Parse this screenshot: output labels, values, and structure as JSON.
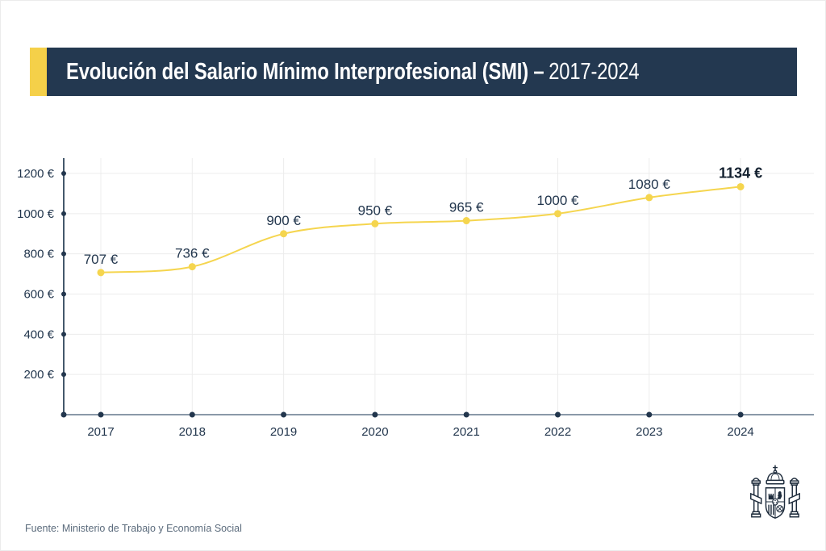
{
  "header": {
    "title_main": "Evolución del Salario Mínimo Interprofesional (SMI) –",
    "title_period": "2017-2024"
  },
  "footer": {
    "source": "Fuente: Ministerio de Trabajo y Economía Social",
    "emblem_icon": "spain-coat-of-arms"
  },
  "colors": {
    "header_navy": "#233850",
    "accent_yellow": "#F5D049",
    "series_yellow": "#F5D54E",
    "grid": "#ECECEC",
    "axis_x": "#8A99A8",
    "axis_y": "#44586C",
    "tick_dot": "#22364D",
    "label_navy": "#22364D",
    "label_bold": "#13202F",
    "source_text": "#5B6B7C"
  },
  "chart_data": {
    "type": "line",
    "title": "Evolución del Salario Mínimo Interprofesional (SMI) – 2017-2024",
    "x": [
      "2017",
      "2018",
      "2019",
      "2020",
      "2021",
      "2022",
      "2023",
      "2024"
    ],
    "values": [
      707,
      736,
      900,
      950,
      965,
      1000,
      1080,
      1134
    ],
    "point_labels": [
      "707 €",
      "736 €",
      "900 €",
      "950 €",
      "965 €",
      "1000 €",
      "1080 €",
      "1134 €"
    ],
    "y_ticks": [
      200,
      400,
      600,
      800,
      1000,
      1200
    ],
    "y_tick_labels": [
      "200 €",
      "400 €",
      "600 €",
      "800 €",
      "1000 €",
      "1200 €"
    ],
    "ylim": [
      0,
      1280
    ],
    "grid": true,
    "legend": false,
    "series_color": "#F5D54E",
    "last_label_bold": true,
    "xlabel": "",
    "ylabel": ""
  }
}
